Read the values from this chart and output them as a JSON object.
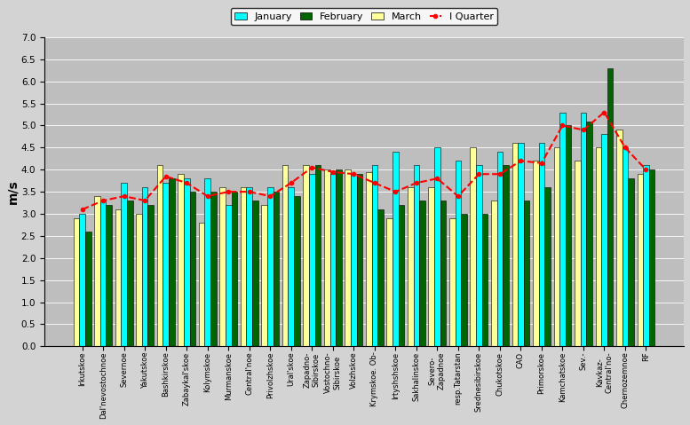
{
  "categories": [
    "Irkutskoe",
    "Dal'nevostochnoe",
    "Severnoe",
    "Yakutskoe",
    "Bashkirskoe",
    "Zabaykal'skoe",
    "Kolymskoe",
    "Murmanskoe",
    "Central'noe",
    "Privolzhskoe",
    "Ural'skoe",
    "Zapadno-\nSibirskoe",
    "Vostochno-\nSibirskoe",
    "Volzhskoe",
    "Krymskoe. Ob-",
    "Irtyshshskoe",
    "Sakhalinskoe",
    "Severo-\nZapadnoe",
    "resp.Tatarstan",
    "Srednesibirskoe",
    "Chukotskoe",
    "CAO",
    "Primorskoe",
    "Kamchatskoe",
    "Sev.-",
    "Kavkaz-\nCentral'no-",
    "Chernozemnoe",
    "RF"
  ],
  "january": [
    3.0,
    3.3,
    3.7,
    3.6,
    3.7,
    3.8,
    3.8,
    3.2,
    3.6,
    3.6,
    3.6,
    3.9,
    3.9,
    3.9,
    4.1,
    4.4,
    4.1,
    4.5,
    4.2,
    4.1,
    4.4,
    4.6,
    4.6,
    5.3,
    5.3,
    4.8,
    4.5,
    4.1
  ],
  "february": [
    2.6,
    3.2,
    3.3,
    3.2,
    3.8,
    3.5,
    3.5,
    3.5,
    3.3,
    3.5,
    3.4,
    4.1,
    4.0,
    3.9,
    3.1,
    3.2,
    3.3,
    3.3,
    3.0,
    3.0,
    4.1,
    3.3,
    3.6,
    5.0,
    5.1,
    6.3,
    3.8,
    4.0
  ],
  "march": [
    2.9,
    3.4,
    3.1,
    3.0,
    4.1,
    3.9,
    2.8,
    3.6,
    3.6,
    3.2,
    4.1,
    4.1,
    4.0,
    4.0,
    3.95,
    2.9,
    3.6,
    3.6,
    2.9,
    4.5,
    3.3,
    4.6,
    4.2,
    4.5,
    4.2,
    4.5,
    4.9,
    3.9
  ],
  "quarter": [
    3.1,
    3.3,
    3.4,
    3.3,
    3.85,
    3.7,
    3.4,
    3.5,
    3.5,
    3.4,
    3.7,
    4.05,
    3.95,
    3.9,
    3.7,
    3.5,
    3.7,
    3.8,
    3.4,
    3.9,
    3.9,
    4.2,
    4.15,
    5.0,
    4.9,
    5.3,
    4.5,
    4.0
  ],
  "bar_colors": {
    "january": "#00FFFF",
    "february": "#006400",
    "march": "#FFFF99"
  },
  "line_color": "#FF0000",
  "bg_color": "#BEBEBE",
  "fig_bg_color": "#D3D3D3",
  "ylabel": "m/s",
  "ylim": [
    0,
    7
  ],
  "yticks": [
    0,
    0.5,
    1.0,
    1.5,
    2.0,
    2.5,
    3.0,
    3.5,
    4.0,
    4.5,
    5.0,
    5.5,
    6.0,
    6.5,
    7.0
  ]
}
